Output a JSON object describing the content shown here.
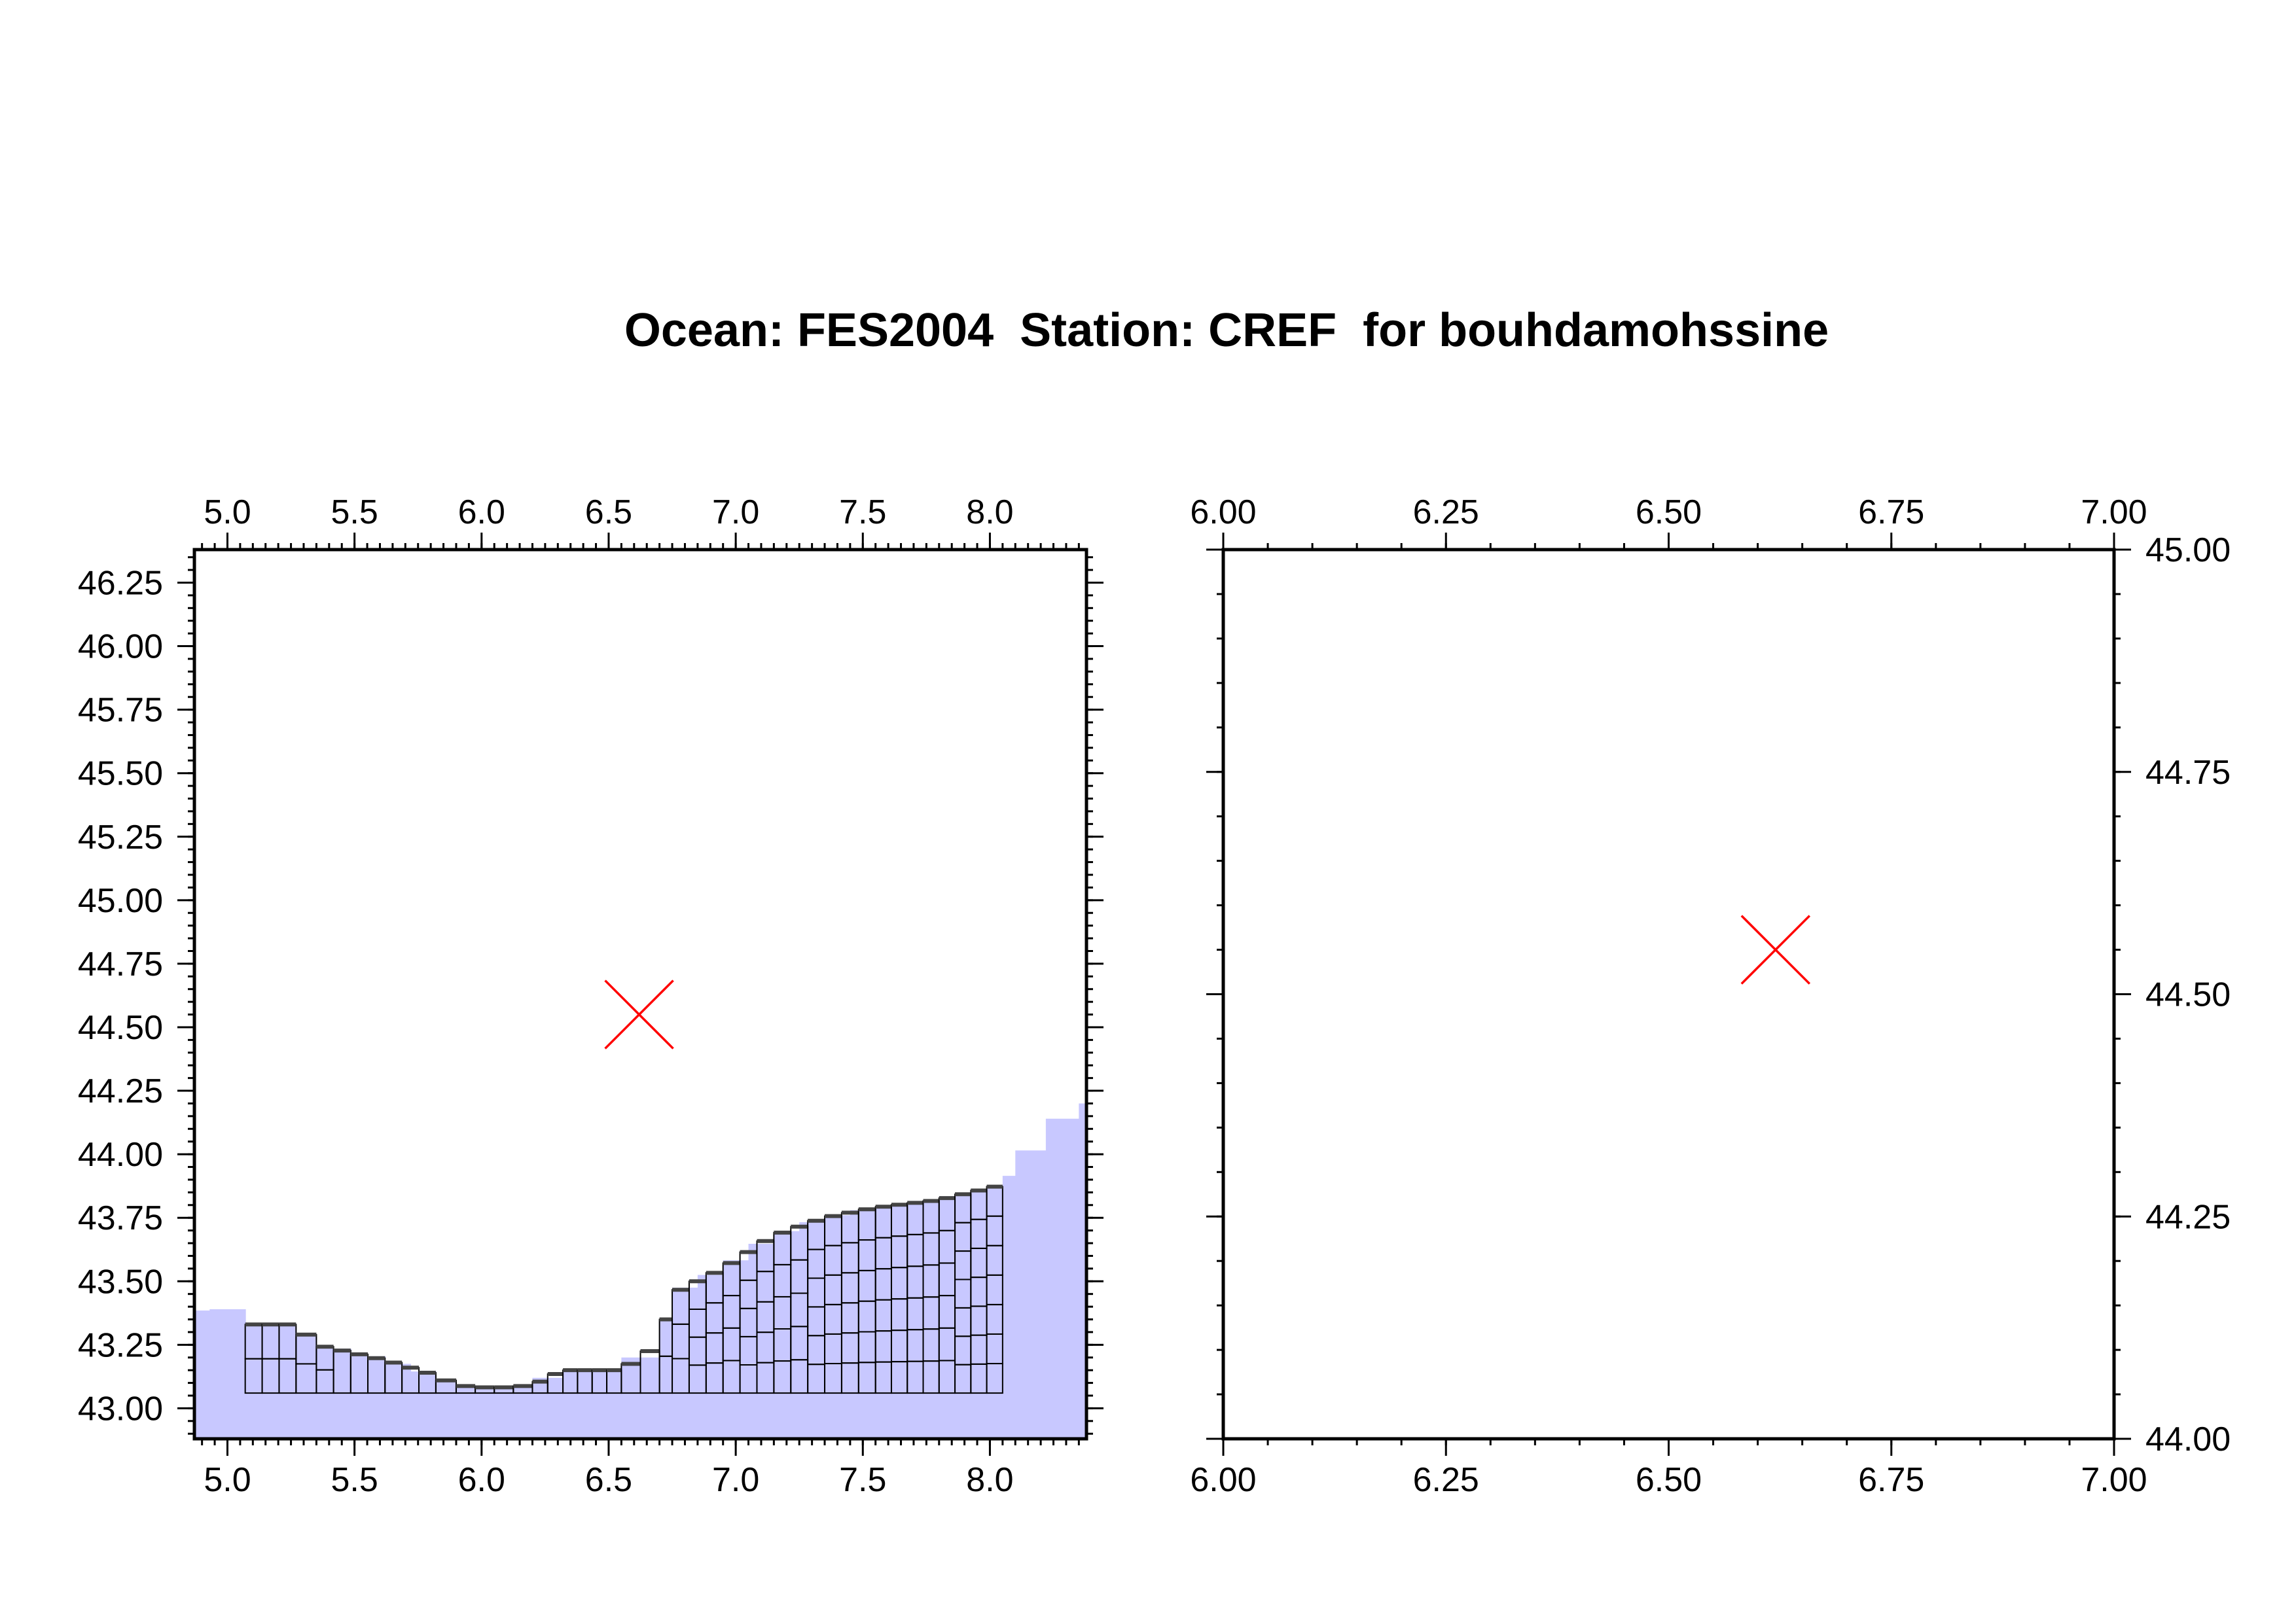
{
  "title": "Ocean: FES2004  Station: CREF  for bouhdamohssine",
  "colors": {
    "land": "#c8c8ff",
    "marker": "#ff0000",
    "grid_cell": "#000000",
    "frame": "#000000"
  },
  "chart_data": [
    {
      "type": "map",
      "name": "overview",
      "xlim": [
        4.87,
        8.38
      ],
      "ylim": [
        42.88,
        46.38
      ],
      "x_ticks": [
        "5.0",
        "5.5",
        "6.0",
        "6.5",
        "7.0",
        "7.5",
        "8.0"
      ],
      "y_ticks": [
        "43.00",
        "43.25",
        "43.50",
        "43.75",
        "44.00",
        "44.25",
        "44.50",
        "44.75",
        "45.00",
        "45.25",
        "45.50",
        "45.75",
        "46.00",
        "46.25"
      ],
      "x_label_sides": [
        "top",
        "bottom"
      ],
      "y_label_side": "left",
      "station": {
        "lon": 6.62,
        "lat": 44.55,
        "marker": "x"
      },
      "coast_profile": [
        [
          4.87,
          43.32
        ],
        [
          4.93,
          43.45
        ],
        [
          5.07,
          43.33
        ],
        [
          5.27,
          43.33
        ],
        [
          5.35,
          43.25
        ],
        [
          5.62,
          43.19
        ],
        [
          5.82,
          43.13
        ],
        [
          5.9,
          43.09
        ],
        [
          6.05,
          43.08
        ],
        [
          6.2,
          43.09
        ],
        [
          6.32,
          43.15
        ],
        [
          6.55,
          43.15
        ],
        [
          6.7,
          43.25
        ],
        [
          6.75,
          43.45
        ],
        [
          6.95,
          43.55
        ],
        [
          7.15,
          43.68
        ],
        [
          7.35,
          43.75
        ],
        [
          7.55,
          43.79
        ],
        [
          7.8,
          43.82
        ],
        [
          8.05,
          43.88
        ],
        [
          8.1,
          43.95
        ],
        [
          8.22,
          44.08
        ],
        [
          8.35,
          44.2
        ],
        [
          8.38,
          44.2
        ]
      ]
    },
    {
      "type": "map",
      "name": "zoom",
      "xlim": [
        6.0,
        7.0
      ],
      "ylim": [
        44.0,
        45.0
      ],
      "x_ticks": [
        "6.00",
        "6.25",
        "6.50",
        "6.75",
        "7.00"
      ],
      "y_ticks": [
        "44.00",
        "44.25",
        "44.50",
        "44.75",
        "45.00"
      ],
      "x_label_sides": [
        "top",
        "bottom"
      ],
      "y_label_side": "right",
      "station": {
        "lon": 6.62,
        "lat": 44.55,
        "marker": "x"
      }
    }
  ]
}
